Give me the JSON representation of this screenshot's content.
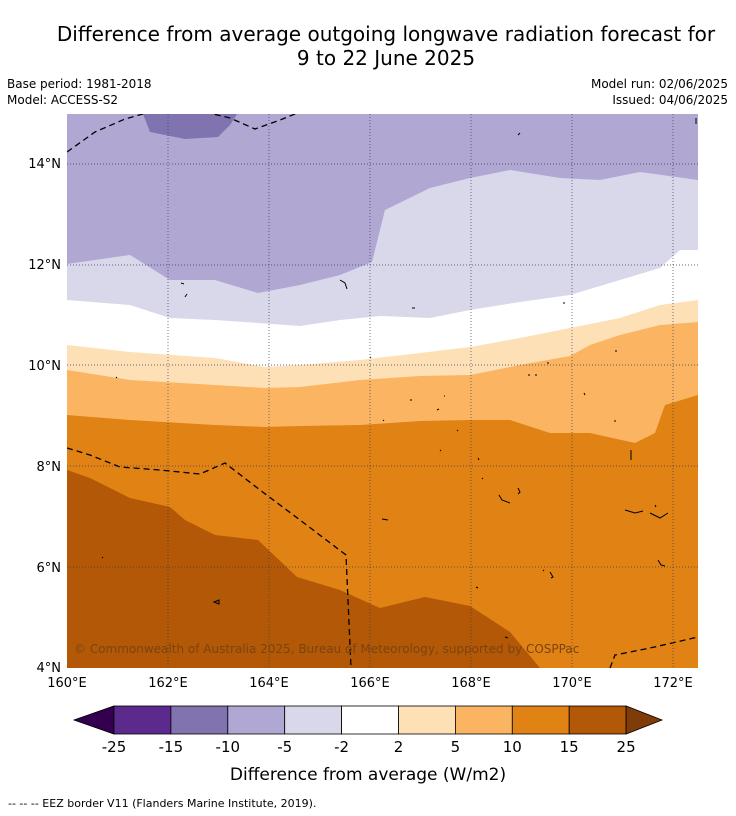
{
  "header": {
    "title_line1": "Difference from average outgoing longwave radiation forecast for",
    "title_line2": "9 to 22 June 2025",
    "base_period": "Base period: 1981-2018",
    "model": "Model: ACCESS-S2",
    "model_run": "Model run: 02/06/2025",
    "issued": "Issued: 04/06/2025"
  },
  "map": {
    "lon_ticks": [
      "160°E",
      "162°E",
      "164°E",
      "166°E",
      "168°E",
      "170°E",
      "172°E"
    ],
    "lat_ticks": [
      "14°N",
      "12°N",
      "10°N",
      "8°N",
      "6°N",
      "4°N"
    ],
    "copyright": "© Commonwealth of Australia 2025, Bureau of Meteorology, supported by COSPPac"
  },
  "colorbar": {
    "ticks": [
      "-25",
      "-15",
      "-10",
      "-5",
      "-2",
      "2",
      "5",
      "10",
      "15",
      "25"
    ],
    "colors": [
      "#32004f",
      "#5c2a8c",
      "#8073b0",
      "#b0a8d2",
      "#d9d8eb",
      "#ffffff",
      "#fde0b6",
      "#fbb562",
      "#e08214",
      "#b35806",
      "#7f3b08"
    ],
    "label": "Difference from average (W/m2)"
  },
  "footnote": "--  --  -- EEZ border V11 (Flanders Marine Institute, 2019)."
}
